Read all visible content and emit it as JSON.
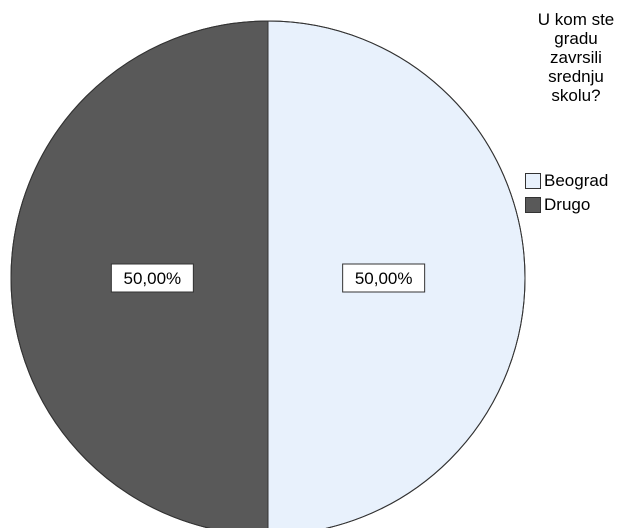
{
  "chart_data": {
    "type": "pie",
    "title": "",
    "legend_title": [
      "U kom ste",
      "gradu",
      "zavrsili",
      "srednju",
      "skolu?"
    ],
    "legend_position": "top-right",
    "slices": [
      {
        "label": "Beograd",
        "value": 50.0,
        "display": "50,00%",
        "color": "#e8f1fc"
      },
      {
        "label": "Drugo",
        "value": 50.0,
        "display": "50,00%",
        "color": "#595959"
      }
    ]
  }
}
